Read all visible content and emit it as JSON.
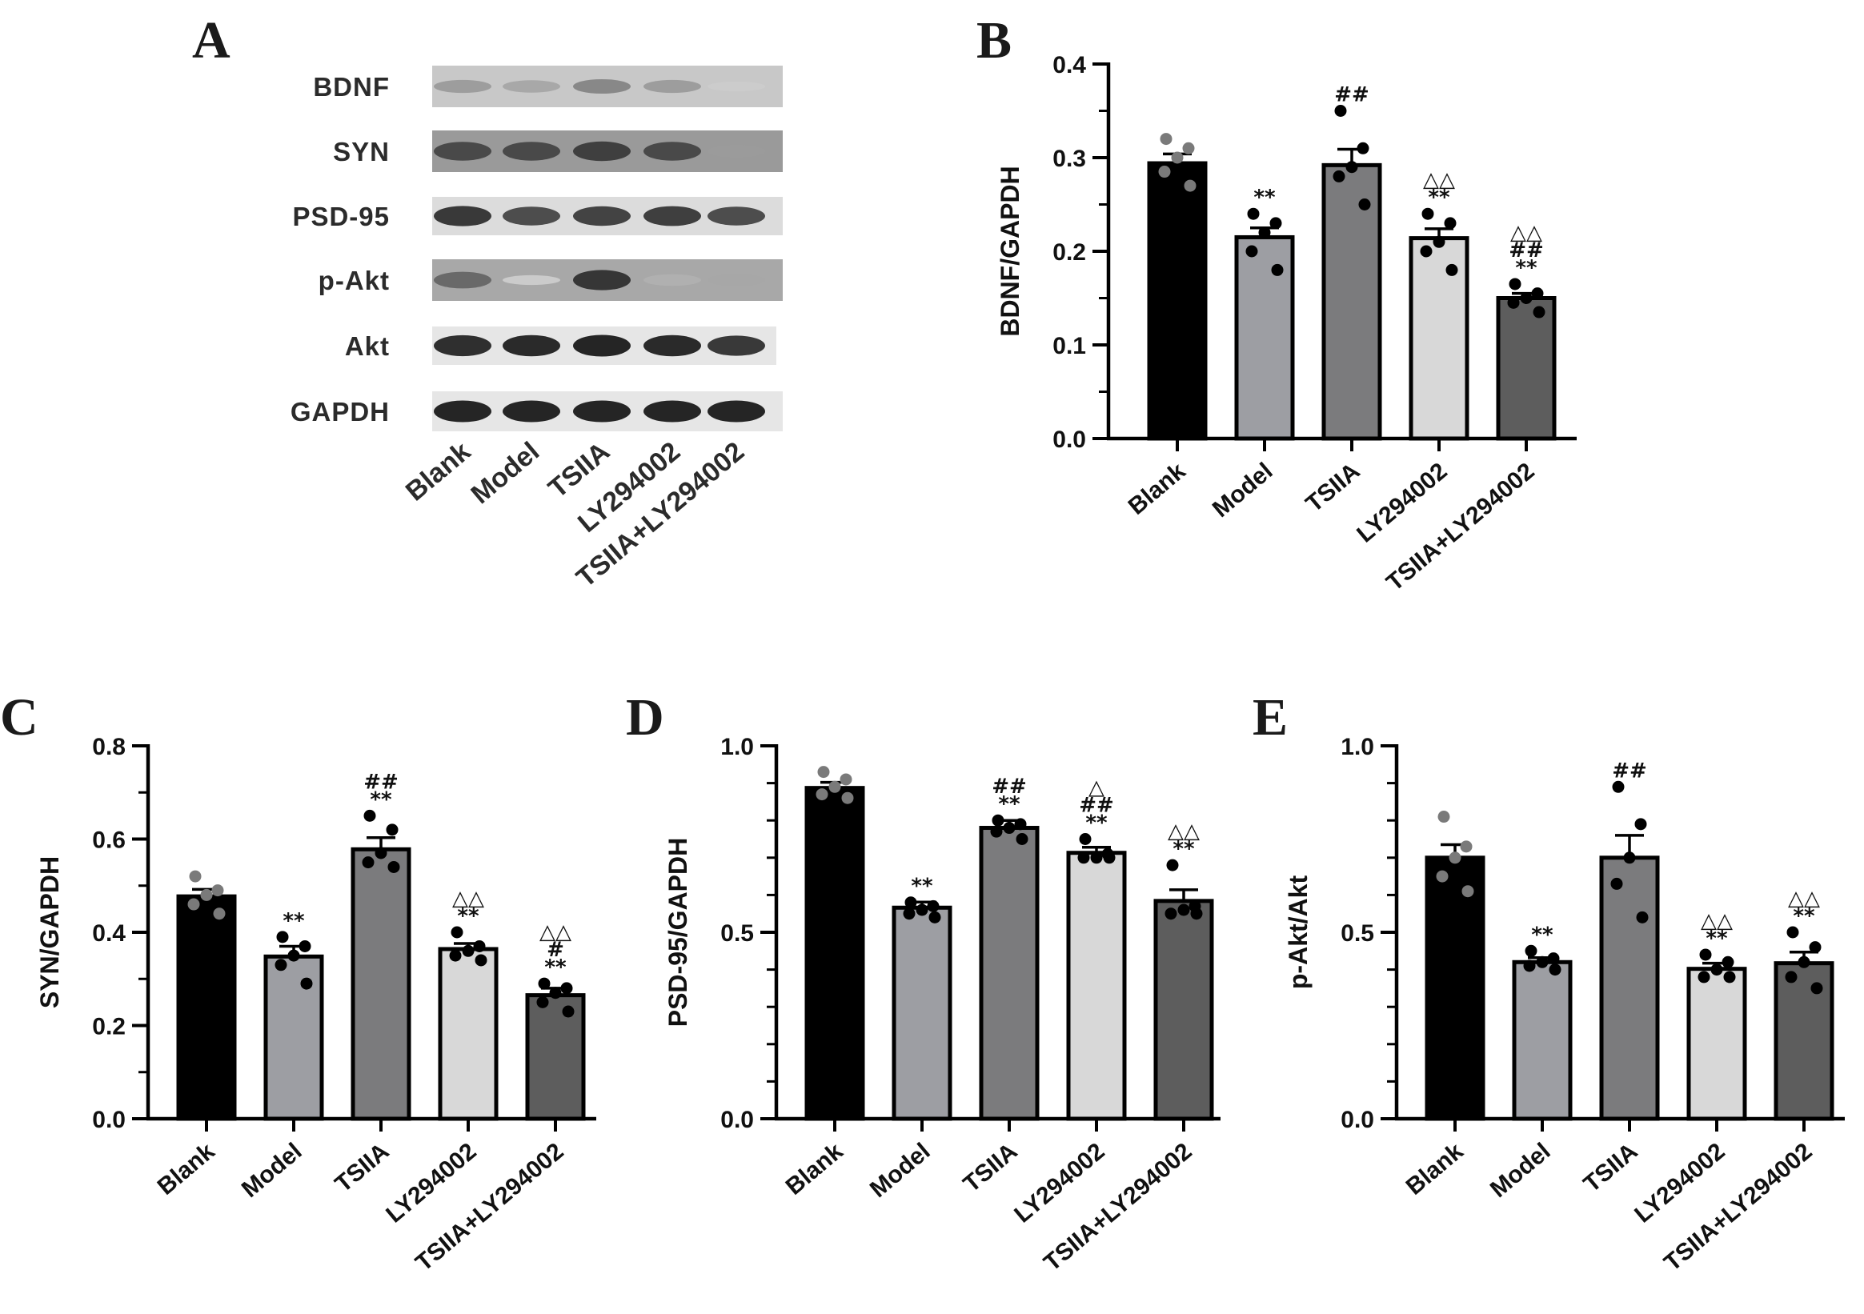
{
  "panels": {
    "A": "A",
    "B": "B",
    "C": "C",
    "D": "D",
    "E": "E"
  },
  "blot": {
    "rows": [
      {
        "label": "BDNF",
        "intensities": [
          0.35,
          0.3,
          0.45,
          0.35,
          0.12
        ],
        "bg": "#c8c8c8"
      },
      {
        "label": "SYN",
        "intensities": [
          0.75,
          0.75,
          0.8,
          0.75,
          0.35
        ],
        "bg": "#9a9a9a"
      },
      {
        "label": "PSD-95",
        "intensities": [
          0.85,
          0.75,
          0.8,
          0.82,
          0.75
        ],
        "bg": "#dcdcdc"
      },
      {
        "label": "p-Akt",
        "intensities": [
          0.6,
          0.12,
          0.85,
          0.25,
          0.3
        ],
        "bg": "#a8a8a8"
      },
      {
        "label": "Akt",
        "intensities": [
          0.9,
          0.92,
          0.95,
          0.92,
          0.85
        ],
        "bg": "#e6e6e6"
      },
      {
        "label": "GAPDH",
        "intensities": [
          0.95,
          0.95,
          0.95,
          0.95,
          0.95
        ],
        "bg": "#e6e6e6"
      }
    ],
    "categories": [
      "Blank",
      "Model",
      "TSIIA",
      "LY294002",
      "TSIIA+LY294002"
    ]
  },
  "colors": {
    "bars": [
      "#000000",
      "#9d9ea3",
      "#7b7b7d",
      "#d8d8d8",
      "#5d5d5d"
    ],
    "dots": [
      "#7a7a7a",
      "#000000",
      "#000000",
      "#000000",
      "#000000"
    ]
  },
  "chart_data": [
    {
      "panel": "B",
      "type": "bar",
      "ylabel": "BDNF/GAPDH",
      "ylim": [
        0,
        0.4
      ],
      "yticks": [
        0.0,
        0.1,
        0.2,
        0.3,
        0.4
      ],
      "tick_labels": [
        "0.0",
        "0.1",
        "0.2",
        "0.3",
        "0.4"
      ],
      "categories": [
        "Blank",
        "Model",
        "TSIIA",
        "LY294002",
        "TSIIA+LY294002"
      ],
      "values": [
        0.294,
        0.215,
        0.292,
        0.214,
        0.15
      ],
      "errors": [
        0.01,
        0.01,
        0.017,
        0.01,
        0.005
      ],
      "points": [
        [
          0.32,
          0.31,
          0.3,
          0.285,
          0.27
        ],
        [
          0.24,
          0.23,
          0.22,
          0.2,
          0.18
        ],
        [
          0.35,
          0.31,
          0.29,
          0.28,
          0.25
        ],
        [
          0.24,
          0.23,
          0.21,
          0.2,
          0.18
        ],
        [
          0.165,
          0.155,
          0.15,
          0.145,
          0.135
        ]
      ],
      "annotations": [
        [],
        [
          "**"
        ],
        [
          "##"
        ],
        [
          "△△",
          "**"
        ],
        [
          "△△",
          "##",
          "**"
        ]
      ]
    },
    {
      "panel": "C",
      "type": "bar",
      "ylabel": "SYN/GAPDH",
      "ylim": [
        0,
        0.8
      ],
      "yticks": [
        0.0,
        0.2,
        0.4,
        0.6,
        0.8
      ],
      "tick_labels": [
        "0.0",
        "0.2",
        "0.4",
        "0.6",
        "0.8"
      ],
      "categories": [
        "Blank",
        "Model",
        "TSIIA",
        "LY294002",
        "TSIIA+LY294002"
      ],
      "values": [
        0.477,
        0.348,
        0.578,
        0.364,
        0.265
      ],
      "errors": [
        0.015,
        0.022,
        0.025,
        0.012,
        0.015
      ],
      "points": [
        [
          0.52,
          0.49,
          0.48,
          0.46,
          0.44
        ],
        [
          0.39,
          0.37,
          0.35,
          0.33,
          0.29
        ],
        [
          0.65,
          0.62,
          0.57,
          0.55,
          0.54
        ],
        [
          0.4,
          0.37,
          0.36,
          0.35,
          0.34
        ],
        [
          0.29,
          0.28,
          0.27,
          0.25,
          0.23
        ]
      ],
      "annotations": [
        [],
        [
          "**"
        ],
        [
          "##",
          "**"
        ],
        [
          "△△",
          "**"
        ],
        [
          "△△",
          "#",
          "**"
        ]
      ]
    },
    {
      "panel": "D",
      "type": "bar",
      "ylabel": "PSD-95/GAPDH",
      "ylim": [
        0,
        1.0
      ],
      "yticks": [
        0.0,
        0.5,
        1.0
      ],
      "tick_labels": [
        "0.0",
        "0.5",
        "1.0"
      ],
      "categories": [
        "Blank",
        "Model",
        "TSIIA",
        "LY294002",
        "TSIIA+LY294002"
      ],
      "values": [
        0.887,
        0.566,
        0.78,
        0.713,
        0.584
      ],
      "errors": [
        0.015,
        0.015,
        0.02,
        0.015,
        0.03
      ],
      "points": [
        [
          0.93,
          0.91,
          0.89,
          0.87,
          0.86
        ],
        [
          0.58,
          0.57,
          0.56,
          0.55,
          0.54
        ],
        [
          0.8,
          0.79,
          0.78,
          0.77,
          0.75
        ],
        [
          0.75,
          0.71,
          0.7,
          0.7,
          0.7
        ],
        [
          0.68,
          0.57,
          0.56,
          0.55,
          0.55
        ]
      ],
      "annotations": [
        [],
        [
          "**"
        ],
        [
          "##",
          "**"
        ],
        [
          "△",
          "##",
          "**"
        ],
        [
          "△△",
          "**"
        ]
      ]
    },
    {
      "panel": "E",
      "type": "bar",
      "ylabel": "p-Akt/Akt",
      "ylim": [
        0,
        1.0
      ],
      "yticks": [
        0.0,
        0.5,
        1.0
      ],
      "tick_labels": [
        "0.0",
        "0.5",
        "1.0"
      ],
      "categories": [
        "Blank",
        "Model",
        "TSIIA",
        "LY294002",
        "TSIIA+LY294002"
      ],
      "values": [
        0.7,
        0.42,
        0.7,
        0.402,
        0.417
      ],
      "errors": [
        0.035,
        0.012,
        0.06,
        0.015,
        0.03
      ],
      "points": [
        [
          0.81,
          0.73,
          0.7,
          0.65,
          0.61
        ],
        [
          0.45,
          0.43,
          0.42,
          0.41,
          0.4
        ],
        [
          0.89,
          0.79,
          0.7,
          0.63,
          0.54
        ],
        [
          0.44,
          0.42,
          0.4,
          0.38,
          0.38
        ],
        [
          0.5,
          0.46,
          0.42,
          0.38,
          0.35
        ]
      ],
      "annotations": [
        [],
        [
          "**"
        ],
        [
          "##"
        ],
        [
          "△△",
          "**"
        ],
        [
          "△△",
          "**"
        ]
      ]
    }
  ]
}
